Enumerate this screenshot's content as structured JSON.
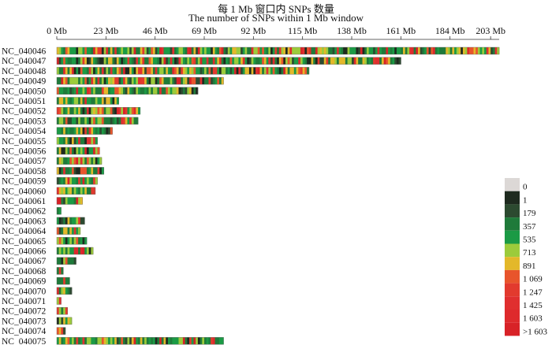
{
  "chart_data": {
    "type": "heatmap",
    "title_cn": "每 1 Mb 窗口内 SNPs 数量",
    "title_en": "The number of SNPs within 1 Mb window",
    "x_axis": {
      "unit": "Mb",
      "min": 0,
      "max": 207,
      "ticks": [
        {
          "value": 0,
          "label": "0 Mb"
        },
        {
          "value": 23,
          "label": "23 Mb"
        },
        {
          "value": 46,
          "label": "46 Mb"
        },
        {
          "value": 69,
          "label": "69 Mb"
        },
        {
          "value": 92,
          "label": "92 Mb"
        },
        {
          "value": 115,
          "label": "115 Mb"
        },
        {
          "value": 138,
          "label": "138 Mb"
        },
        {
          "value": 161,
          "label": "161 Mb"
        },
        {
          "value": 184,
          "label": "184 Mb"
        },
        {
          "value": 203,
          "label": "203 Mb"
        }
      ]
    },
    "chromosomes": [
      {
        "name": "NC_040046",
        "length_mb": 207
      },
      {
        "name": "NC_040047",
        "length_mb": 161
      },
      {
        "name": "NC_040048",
        "length_mb": 118
      },
      {
        "name": "NC_040049",
        "length_mb": 78
      },
      {
        "name": "NC_040050",
        "length_mb": 66
      },
      {
        "name": "NC_040051",
        "length_mb": 29
      },
      {
        "name": "NC_040052",
        "length_mb": 39
      },
      {
        "name": "NC_040053",
        "length_mb": 38
      },
      {
        "name": "NC_040054",
        "length_mb": 26
      },
      {
        "name": "NC_040055",
        "length_mb": 19
      },
      {
        "name": "NC_040056",
        "length_mb": 20
      },
      {
        "name": "NC_040057",
        "length_mb": 21
      },
      {
        "name": "NC_040058",
        "length_mb": 22
      },
      {
        "name": "NC_040059",
        "length_mb": 19
      },
      {
        "name": "NC_040060",
        "length_mb": 18
      },
      {
        "name": "NC_040061",
        "length_mb": 12
      },
      {
        "name": "NC_040062",
        "length_mb": 2
      },
      {
        "name": "NC_040063",
        "length_mb": 13
      },
      {
        "name": "NC_040064",
        "length_mb": 11
      },
      {
        "name": "NC_040065",
        "length_mb": 14
      },
      {
        "name": "NC_040066",
        "length_mb": 17
      },
      {
        "name": "NC_040067",
        "length_mb": 9
      },
      {
        "name": "NC_040068",
        "length_mb": 3
      },
      {
        "name": "NC_040069",
        "length_mb": 6
      },
      {
        "name": "NC_040070",
        "length_mb": 7
      },
      {
        "name": "NC_040071",
        "length_mb": 2
      },
      {
        "name": "NC_040072",
        "length_mb": 5
      },
      {
        "name": "NC_040073",
        "length_mb": 7
      },
      {
        "name": "NC_040074",
        "length_mb": 4
      },
      {
        "name": "NC_040075",
        "length_mb": 78
      }
    ],
    "legend": [
      {
        "label": "0",
        "color": "#dcd8d6"
      },
      {
        "label": "1",
        "color": "#1e2a1f"
      },
      {
        "label": "179",
        "color": "#2c4a30"
      },
      {
        "label": "357",
        "color": "#1f7a3a"
      },
      {
        "label": "535",
        "color": "#1b9a45"
      },
      {
        "label": "713",
        "color": "#9ccb3b"
      },
      {
        "label": "891",
        "color": "#e3b82a"
      },
      {
        "label": "1 069",
        "color": "#e8552c"
      },
      {
        "label": "1 247",
        "color": "#e23a2e"
      },
      {
        "label": "1 425",
        "color": "#e02f2f"
      },
      {
        "label": "1 603",
        "color": "#de2a2c"
      },
      {
        "label": ">1 603",
        "color": "#d82227"
      }
    ]
  }
}
